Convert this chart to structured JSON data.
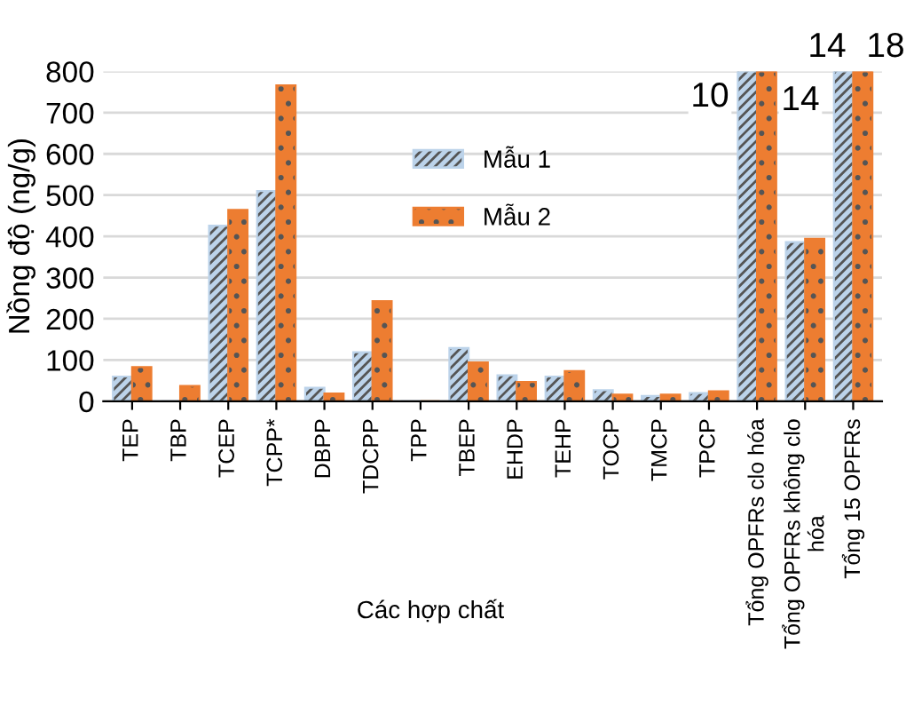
{
  "chart_data": {
    "type": "bar",
    "xlabel": "Các hợp chất",
    "ylabel": "Nồng độ (ng/g)",
    "categories": [
      "TEP",
      "TBP",
      "TCEP",
      "TCPP*",
      "DBPP",
      "TDCPP",
      "TPP",
      "TBEP",
      "EHDP",
      "TEHP",
      "TOCP",
      "TMCP",
      "TPCP",
      "Tổng OPFRs clo hóa",
      "Tổng OPFRs không clo\nhóa",
      "Tổng 15 OPFRs"
    ],
    "series": [
      {
        "name": "Mẫu 1",
        "color": "#bcd3ea",
        "values": [
          60,
          0,
          426,
          510,
          33,
          119,
          0,
          129,
          63,
          60,
          27,
          13,
          20,
          800,
          386,
          800
        ]
      },
      {
        "name": "Mẫu 2",
        "color": "#ed7d31",
        "values": [
          83,
          37,
          464,
          766,
          19,
          243,
          0,
          94,
          47,
          73,
          16,
          16,
          24,
          800,
          394,
          800
        ]
      }
    ],
    "annotations": [
      "10",
      "14",
      "14",
      "18"
    ],
    "ylim": [
      0,
      800
    ],
    "yticks": [
      0,
      100,
      200,
      300,
      400,
      500,
      600,
      700,
      800
    ],
    "grid": "y",
    "legend": "top center"
  }
}
